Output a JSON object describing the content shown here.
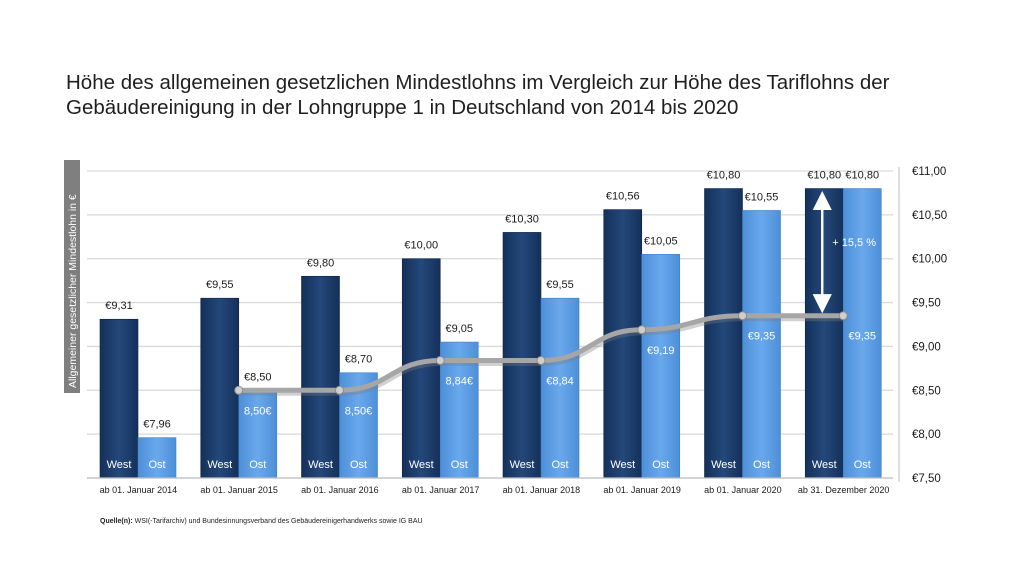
{
  "title_line1": "Höhe des allgemeinen gesetzlichen Mindestlohns im Vergleich zur Höhe des Tariflohns der",
  "title_line2": "Gebäudereinigung in der Lohngruppe 1 in Deutschland von 2014 bis 2020",
  "source_label": "Quelle(n):",
  "source_text": "WSI(-Tarifarchiv) und Bundesinnungsverband des Gebäudereinigerhandwerks  sowie IG BAU",
  "colors": {
    "west": "#1b3a66",
    "ost": "#5b9be0",
    "line": "#a6a6a6",
    "grid": "#d9d9d9",
    "ylabel_bg": "#7f7f7f"
  },
  "chart_data": {
    "type": "bar",
    "title": "Höhe des allgemeinen gesetzlichen Mindestlohns im Vergleich zur Höhe des Tariflohns der Gebäudereinigung in der Lohngruppe 1 in Deutschland von 2014 bis 2020",
    "categories": [
      "ab 01. Januar 2014",
      "ab 01. Januar 2015",
      "ab 01. Januar 2016",
      "ab 01. Januar 2017",
      "ab 01. Januar 2018",
      "ab 01. Januar 2019",
      "ab 01. Januar 2020",
      "ab 31. Dezember 2020"
    ],
    "series": [
      {
        "name": "West",
        "values": [
          9.31,
          9.55,
          9.8,
          10.0,
          10.3,
          10.56,
          10.8,
          10.8
        ],
        "labels": [
          "€9,31",
          "€9,55",
          "€9,80",
          "€10,00",
          "€10,30",
          "€10,56",
          "€10,80",
          "€10,80"
        ]
      },
      {
        "name": "Ost",
        "values": [
          7.96,
          8.5,
          8.7,
          9.05,
          9.55,
          10.05,
          10.55,
          10.8
        ],
        "labels": [
          "€7,96",
          "€8,50",
          "€8,70",
          "€9,05",
          "€9,55",
          "€10,05",
          "€10,55",
          "€10,80"
        ]
      },
      {
        "name": "Allgemeiner gesetzlicher Mindestlohn",
        "type": "line",
        "values": [
          null,
          8.5,
          8.5,
          8.84,
          8.84,
          9.19,
          9.35,
          9.35
        ],
        "labels": [
          "",
          "8,50€",
          "8,50€",
          "8,84€",
          "€8,84",
          "€9,19",
          "€9,35",
          "€9,35"
        ]
      }
    ],
    "ylabel": "Allgemeiner gesetzlicher Mindestlohn in €",
    "ylim": [
      7.5,
      11.0
    ],
    "yticks": [
      7.5,
      8.0,
      8.5,
      9.0,
      9.5,
      10.0,
      10.5,
      11.0
    ],
    "ytick_labels": [
      "€7,50",
      "€8,00",
      "€8,50",
      "€9,00",
      "€9,50",
      "€10,00",
      "€10,50",
      "€11,00"
    ],
    "yaxis_side": "right",
    "grid": true,
    "annotation": {
      "text": "+ 15,5 %",
      "category_index": 7,
      "from": 9.35,
      "to": 10.8
    }
  }
}
